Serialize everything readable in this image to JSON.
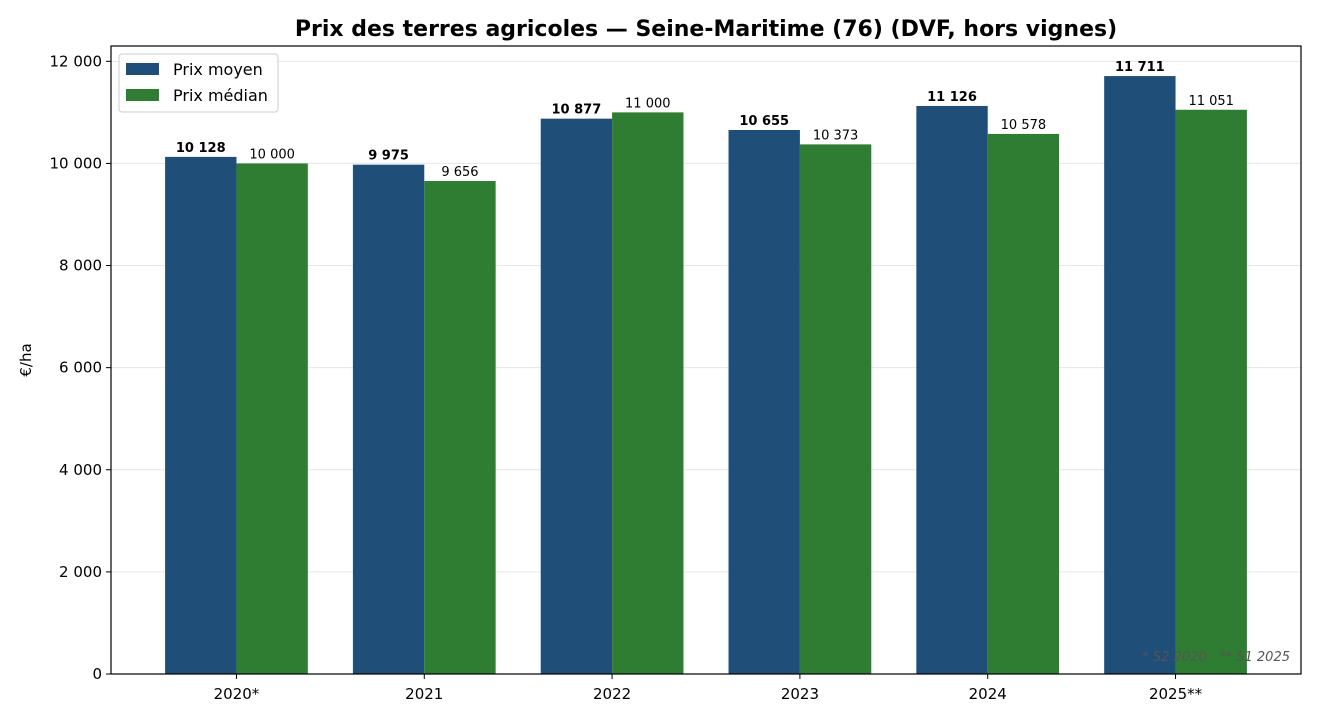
{
  "chart_data": {
    "type": "bar",
    "title": "Prix des terres agricoles — Seine-Maritime (76) (DVF, hors vignes)",
    "xlabel": "",
    "ylabel": "€/ha",
    "categories": [
      "2020*",
      "2021",
      "2022",
      "2023",
      "2024",
      "2025**"
    ],
    "series": [
      {
        "name": "Prix moyen",
        "color": "#1f4e79",
        "values": [
          10128,
          9975,
          10877,
          10655,
          11126,
          11711
        ],
        "labels": [
          "10 128",
          "9 975",
          "10 877",
          "10 655",
          "11 126",
          "11 711"
        ]
      },
      {
        "name": "Prix médian",
        "color": "#2e7d32",
        "values": [
          10000,
          9656,
          11000,
          10373,
          10578,
          11051
        ],
        "labels": [
          "10 000",
          "9 656",
          "11 000",
          "10 373",
          "10 578",
          "11 051"
        ]
      }
    ],
    "ylim": [
      0,
      12300
    ],
    "yticks": [
      0,
      2000,
      4000,
      6000,
      8000,
      10000,
      12000
    ],
    "ytick_labels": [
      "0",
      "2 000",
      "4 000",
      "6 000",
      "8 000",
      "10 000",
      "12 000"
    ],
    "grid": "horizontal",
    "legend_placement": "top-left",
    "footnote": "* S2 2020   ** S1 2025"
  }
}
